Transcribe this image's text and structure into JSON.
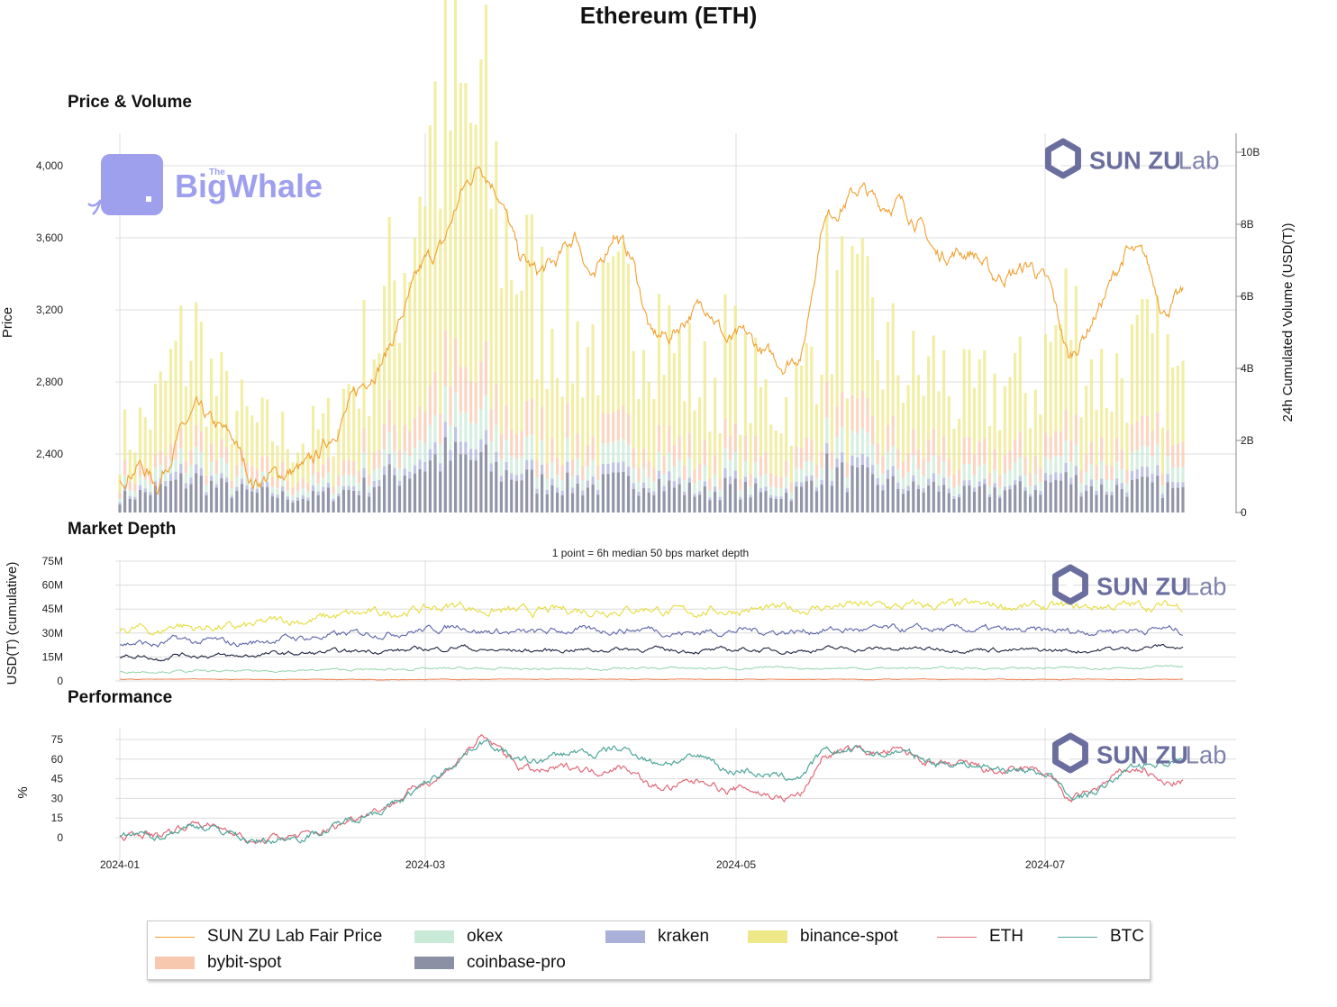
{
  "title": "Ethereum (ETH)",
  "panels": {
    "price_title": "Price & Volume",
    "depth_title": "Market Depth",
    "perf_title": "Performance",
    "depth_subtitle": "1 point = 6h median 50 bps market depth"
  },
  "watermarks": {
    "sunzu_a": "SUN ZU",
    "sunzu_b": "Lab",
    "bigwhale_small": "The",
    "bigwhale": "BigWhale"
  },
  "colors": {
    "fair_price": "#f0a030",
    "bybit": "#f8c8ae",
    "okex": "#c8ead6",
    "kraken": "#aab0d8",
    "binance": "#eee888",
    "coinbase": "#8c90a4",
    "eth": "#e06a7a",
    "btc": "#4fa69a",
    "depth_binance": "#e6dc3c",
    "depth_kraken": "#5c64a8",
    "depth_coinbase": "#1e2440",
    "depth_okex": "#9ad8b0",
    "depth_bybit": "#f08a60",
    "sunzu": "#6a6e9e",
    "bigwhale": "#9ea0ee"
  },
  "chart_data": [
    {
      "type": "line",
      "name": "price",
      "title": "Price & Volume",
      "ylabel": "Price",
      "y2label": "24h Cumulated Volume (USD(T))",
      "x_ticks": [
        "2024-01",
        "2024-03",
        "2024-05",
        "2024-07"
      ],
      "yticks": [
        "2,400",
        "2,800",
        "3,200",
        "3,600",
        "4,000"
      ],
      "y2ticks": [
        "0",
        "2B",
        "4B",
        "6B",
        "8B",
        "10B"
      ],
      "ylim": [
        2080,
        4200
      ],
      "y2lim": [
        0,
        10500000000
      ],
      "grid": true,
      "series": [
        {
          "name": "SUN ZU Lab Fair Price",
          "x": [
            "2024-01-01",
            "2024-01-05",
            "2024-01-09",
            "2024-01-11",
            "2024-01-13",
            "2024-01-17",
            "2024-01-21",
            "2024-01-23",
            "2024-01-28",
            "2024-02-01",
            "2024-02-05",
            "2024-02-09",
            "2024-02-13",
            "2024-02-17",
            "2024-02-21",
            "2024-02-26",
            "2024-02-29",
            "2024-03-04",
            "2024-03-08",
            "2024-03-12",
            "2024-03-15",
            "2024-03-19",
            "2024-03-23",
            "2024-03-27",
            "2024-03-31",
            "2024-04-04",
            "2024-04-08",
            "2024-04-11",
            "2024-04-14",
            "2024-04-19",
            "2024-04-23",
            "2024-04-27",
            "2024-05-01",
            "2024-05-05",
            "2024-05-09",
            "2024-05-13",
            "2024-05-17",
            "2024-05-20",
            "2024-05-23",
            "2024-05-27",
            "2024-05-31",
            "2024-06-04",
            "2024-06-08",
            "2024-06-12",
            "2024-06-16",
            "2024-06-20",
            "2024-06-24",
            "2024-06-28",
            "2024-07-02",
            "2024-07-05",
            "2024-07-08",
            "2024-07-12",
            "2024-07-16",
            "2024-07-20",
            "2024-07-24",
            "2024-07-27",
            "2024-07-30"
          ],
          "values": [
            2280,
            2350,
            2230,
            2480,
            2640,
            2550,
            2480,
            2240,
            2280,
            2300,
            2330,
            2480,
            2650,
            2820,
            2950,
            3200,
            3450,
            3550,
            3850,
            4020,
            3850,
            3500,
            3400,
            3460,
            3620,
            3350,
            3640,
            3480,
            3050,
            3050,
            3180,
            3240,
            3020,
            3050,
            2950,
            2900,
            2980,
            3700,
            3780,
            3880,
            3780,
            3800,
            3700,
            3500,
            3520,
            3520,
            3380,
            3400,
            3450,
            3320,
            2920,
            3100,
            3300,
            3520,
            3480,
            3200,
            3280
          ]
        }
      ],
      "volume_series": [
        {
          "name": "binance-spot",
          "values": [
            0.9,
            1.2,
            1.6,
            2.5,
            2.8,
            1.8,
            1.5,
            1.2,
            1.1,
            1.0,
            1.0,
            1.2,
            2.0,
            2.6,
            3.3,
            4.5,
            6.5,
            7.5,
            6.8,
            7.0,
            5.2,
            4.4,
            3.4,
            3.2,
            2.7,
            2.8,
            3.1,
            3.3,
            3.6,
            2.6,
            2.2,
            1.9,
            2.5,
            2.0,
            1.7,
            1.6,
            1.9,
            3.3,
            3.1,
            2.9,
            2.4,
            2.2,
            1.9,
            2.1,
            1.7,
            1.6,
            1.8,
            1.9,
            1.7,
            2.5,
            3.2,
            2.2,
            1.9,
            2.1,
            2.3,
            2.2,
            1.6
          ]
        },
        {
          "name": "bybit-spot",
          "values": [
            0.3,
            0.3,
            0.3,
            0.4,
            0.5,
            0.4,
            0.3,
            0.3,
            0.3,
            0.3,
            0.3,
            0.3,
            0.4,
            0.5,
            0.6,
            0.8,
            1.0,
            1.1,
            1.1,
            1.1,
            0.9,
            0.8,
            0.7,
            0.7,
            0.6,
            0.6,
            0.6,
            0.7,
            0.7,
            0.6,
            0.5,
            0.5,
            0.6,
            0.5,
            0.5,
            0.4,
            0.5,
            0.7,
            0.7,
            0.7,
            0.6,
            0.6,
            0.5,
            0.6,
            0.5,
            0.5,
            0.5,
            0.5,
            0.5,
            0.6,
            0.7,
            0.6,
            0.5,
            0.6,
            0.6,
            0.6,
            0.5
          ]
        },
        {
          "name": "okex",
          "values": [
            0.2,
            0.2,
            0.3,
            0.3,
            0.4,
            0.3,
            0.3,
            0.2,
            0.2,
            0.2,
            0.2,
            0.2,
            0.3,
            0.3,
            0.4,
            0.5,
            0.6,
            0.7,
            0.7,
            0.7,
            0.6,
            0.5,
            0.5,
            0.5,
            0.4,
            0.4,
            0.4,
            0.5,
            0.5,
            0.4,
            0.4,
            0.3,
            0.4,
            0.3,
            0.3,
            0.3,
            0.3,
            0.5,
            0.5,
            0.5,
            0.4,
            0.4,
            0.4,
            0.4,
            0.3,
            0.3,
            0.3,
            0.4,
            0.3,
            0.4,
            0.5,
            0.4,
            0.4,
            0.4,
            0.4,
            0.4,
            0.3
          ]
        },
        {
          "name": "kraken",
          "values": [
            0.1,
            0.1,
            0.1,
            0.2,
            0.2,
            0.1,
            0.1,
            0.1,
            0.1,
            0.1,
            0.1,
            0.1,
            0.1,
            0.2,
            0.2,
            0.2,
            0.3,
            0.3,
            0.3,
            0.3,
            0.2,
            0.2,
            0.2,
            0.2,
            0.2,
            0.2,
            0.2,
            0.2,
            0.2,
            0.2,
            0.1,
            0.1,
            0.2,
            0.1,
            0.1,
            0.1,
            0.1,
            0.2,
            0.2,
            0.2,
            0.2,
            0.2,
            0.1,
            0.2,
            0.1,
            0.1,
            0.1,
            0.1,
            0.1,
            0.2,
            0.2,
            0.2,
            0.1,
            0.2,
            0.2,
            0.2,
            0.1
          ]
        },
        {
          "name": "coinbase-pro",
          "values": [
            0.4,
            0.5,
            0.6,
            0.8,
            0.9,
            0.7,
            0.6,
            0.5,
            0.5,
            0.4,
            0.4,
            0.5,
            0.6,
            0.7,
            0.9,
            1.1,
            1.3,
            1.5,
            1.4,
            1.4,
            1.1,
            1.0,
            0.8,
            0.8,
            0.7,
            0.7,
            0.8,
            0.8,
            0.9,
            0.7,
            0.6,
            0.5,
            0.7,
            0.6,
            0.5,
            0.5,
            0.6,
            1.2,
            1.0,
            0.9,
            0.8,
            0.7,
            0.6,
            0.7,
            0.5,
            0.5,
            0.6,
            0.6,
            0.6,
            0.8,
            0.9,
            0.7,
            0.6,
            0.7,
            0.7,
            0.7,
            0.5
          ]
        }
      ]
    },
    {
      "type": "line",
      "name": "depth",
      "title": "Market Depth",
      "subtitle": "1 point = 6h median 50 bps market depth",
      "ylabel": "USD(T) (cumulative)",
      "yticks": [
        "0",
        "15M",
        "30M",
        "45M",
        "60M",
        "75M"
      ],
      "ylim": [
        0,
        75000000
      ],
      "series": [
        {
          "name": "binance-spot",
          "values": [
            32,
            33,
            30,
            36,
            33,
            34,
            33,
            34,
            37,
            38,
            38,
            40,
            41,
            42,
            42,
            44,
            45,
            46,
            48,
            44,
            44,
            43,
            43,
            44,
            45,
            44,
            45,
            45,
            46,
            43,
            43,
            44,
            44,
            45,
            44,
            45,
            45,
            46,
            47,
            47,
            47,
            46,
            47,
            47,
            47,
            47,
            47,
            47,
            46,
            46,
            46,
            46,
            47,
            47,
            47,
            47,
            47
          ]
        },
        {
          "name": "kraken",
          "values": [
            23,
            24,
            22,
            26,
            24,
            25,
            23,
            24,
            26,
            27,
            27,
            28,
            29,
            30,
            30,
            31,
            32,
            33,
            35,
            31,
            31,
            30,
            30,
            31,
            32,
            31,
            32,
            32,
            33,
            30,
            30,
            31,
            31,
            32,
            31,
            31,
            31,
            32,
            32,
            32,
            32,
            32,
            32,
            32,
            32,
            32,
            32,
            31,
            31,
            31,
            31,
            31,
            32,
            32,
            32,
            33,
            31
          ]
        },
        {
          "name": "coinbase-pro",
          "values": [
            15,
            16,
            14,
            17,
            16,
            16,
            15,
            16,
            17,
            17,
            17,
            18,
            18,
            19,
            19,
            19,
            20,
            20,
            22,
            19,
            19,
            19,
            19,
            19,
            20,
            19,
            20,
            20,
            20,
            19,
            19,
            19,
            19,
            20,
            19,
            19,
            19,
            20,
            20,
            20,
            20,
            20,
            20,
            20,
            20,
            20,
            20,
            19,
            19,
            19,
            19,
            19,
            20,
            20,
            21,
            22,
            20
          ]
        },
        {
          "name": "okex",
          "values": [
            6,
            6,
            6,
            6,
            6,
            6,
            6,
            6,
            6.5,
            6.5,
            6.5,
            7,
            7,
            7,
            7,
            7.5,
            7.5,
            7.5,
            8,
            7.5,
            7.5,
            7.5,
            7.5,
            7.5,
            7.5,
            7.5,
            8,
            8,
            8,
            8,
            8,
            8,
            8,
            8,
            8,
            8,
            8,
            8,
            8,
            8,
            8,
            8,
            8,
            8,
            8,
            8,
            8,
            8,
            8,
            8,
            8,
            8,
            8.5,
            8.5,
            8.5,
            9,
            9
          ]
        },
        {
          "name": "bybit-spot",
          "values": [
            1,
            1,
            1,
            1,
            1,
            1,
            1,
            1,
            1,
            1,
            1,
            1,
            1,
            1,
            1,
            1,
            1,
            1,
            1,
            1,
            1,
            1,
            1,
            1,
            1,
            1,
            1,
            1,
            1,
            1,
            1,
            1,
            1,
            1,
            1,
            1,
            1,
            1,
            1,
            1,
            1,
            1,
            1,
            1,
            1,
            1,
            1,
            1,
            1,
            1,
            1,
            1,
            1,
            1,
            1,
            1,
            1
          ]
        }
      ]
    },
    {
      "type": "line",
      "name": "performance",
      "title": "Performance",
      "ylabel": "%",
      "yticks": [
        "0",
        "15",
        "30",
        "45",
        "60",
        "75"
      ],
      "ylim": [
        -10,
        85
      ],
      "series": [
        {
          "name": "ETH",
          "values": [
            0,
            3,
            2,
            7,
            12,
            8,
            6,
            -5,
            -1,
            1,
            2,
            6,
            13,
            20,
            24,
            32,
            42,
            48,
            62,
            76,
            68,
            55,
            50,
            52,
            55,
            50,
            55,
            52,
            38,
            38,
            42,
            44,
            35,
            38,
            33,
            30,
            34,
            62,
            65,
            68,
            64,
            66,
            62,
            54,
            55,
            55,
            50,
            50,
            52,
            48,
            28,
            34,
            42,
            52,
            52,
            40,
            43
          ]
        },
        {
          "name": "BTC",
          "values": [
            0,
            2,
            1,
            6,
            10,
            6,
            4,
            -4,
            -2,
            0,
            2,
            6,
            13,
            19,
            22,
            30,
            40,
            50,
            62,
            74,
            68,
            58,
            58,
            62,
            66,
            63,
            68,
            66,
            58,
            58,
            60,
            62,
            50,
            52,
            48,
            45,
            48,
            64,
            66,
            68,
            63,
            66,
            62,
            57,
            57,
            56,
            53,
            52,
            51,
            49,
            30,
            33,
            39,
            52,
            56,
            58,
            58
          ]
        }
      ]
    }
  ],
  "legend": [
    {
      "label": "SUN ZU Lab Fair Price",
      "kind": "line",
      "color": "#f0a030"
    },
    {
      "label": "okex",
      "kind": "box",
      "color": "#c8ead6"
    },
    {
      "label": "kraken",
      "kind": "box",
      "color": "#aab0d8"
    },
    {
      "label": "binance-spot",
      "kind": "box",
      "color": "#eee888"
    },
    {
      "label": "ETH",
      "kind": "line",
      "color": "#e06a7a"
    },
    {
      "label": "BTC",
      "kind": "line",
      "color": "#4fa69a"
    },
    {
      "label": "bybit-spot",
      "kind": "box",
      "color": "#f8c8ae"
    },
    {
      "label": "coinbase-pro",
      "kind": "box",
      "color": "#8c90a4"
    }
  ]
}
